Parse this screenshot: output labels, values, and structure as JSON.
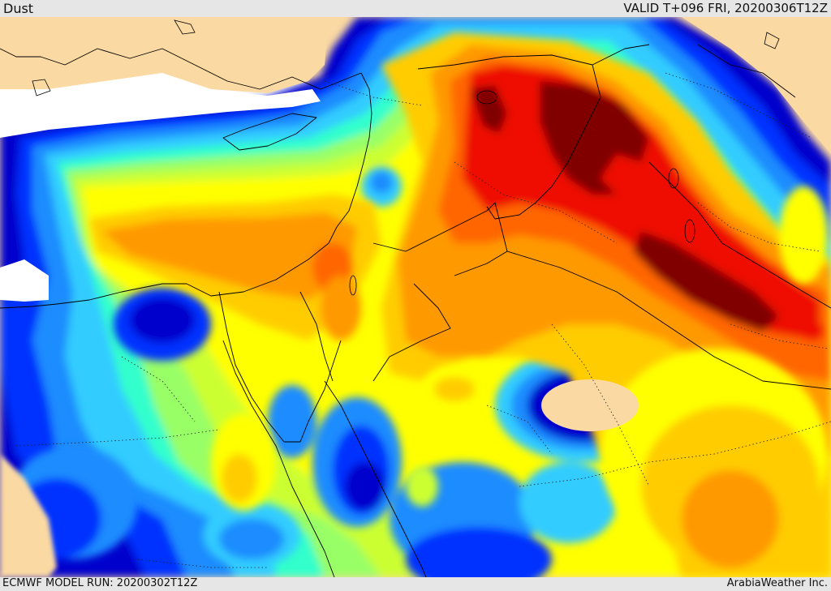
{
  "header": {
    "title": "Dust",
    "valid": "VALID T+096 FRI, 20200306T12Z"
  },
  "footer": {
    "model_run": "ECMWF MODEL RUN: 20200302T12Z",
    "credit": "ArabiaWeather Inc."
  },
  "map": {
    "variable": "Dust",
    "colors": {
      "land_no_data": "#fbd9a3",
      "sea_no_data": "#ffffff",
      "level_1": "#0000cc",
      "level_2": "#0033ff",
      "level_3": "#1a8cff",
      "level_4": "#33ccff",
      "level_5": "#33ffcc",
      "level_6": "#99ff66",
      "level_7": "#ccff33",
      "level_8": "#ffff00",
      "level_9": "#ffcc00",
      "level_10": "#ff9900",
      "level_11": "#ff6600",
      "level_12": "#ee1100",
      "level_13": "#800000"
    }
  }
}
